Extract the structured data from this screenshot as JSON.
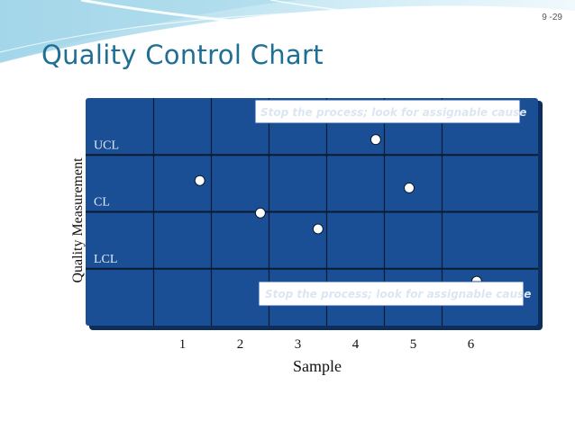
{
  "slide": {
    "page_number": "9 -29",
    "title": "Quality Control Chart"
  },
  "colors": {
    "title": "#1f6f95",
    "plot_bg": "#1a4f96",
    "plot_shadow": "#0d2e5c",
    "grid": "#0a1a30",
    "callout_border": "#1e50a0",
    "callout_text": "#dce6f2",
    "point": "#ffffff",
    "label_text": "#e6ecf5",
    "axis_text": "#111111"
  },
  "chart_data": {
    "type": "scatter",
    "xlabel": "Sample",
    "ylabel": "Quality Measurement",
    "categories": [
      1,
      2,
      3,
      4,
      5,
      6
    ],
    "xlim": [
      -0.5,
      6.5
    ],
    "control_limits": [
      {
        "label": "UCL",
        "band": 3
      },
      {
        "label": "CL",
        "band": 2
      },
      {
        "label": "LCL",
        "band": 1
      }
    ],
    "ylim": [
      0,
      4
    ],
    "points": [
      {
        "x": 0.3,
        "y": 2.55
      },
      {
        "x": 1.35,
        "y": 1.98
      },
      {
        "x": 2.35,
        "y": 1.7
      },
      {
        "x": 3.35,
        "y": 3.27
      },
      {
        "x": 3.93,
        "y": 2.42
      },
      {
        "x": 5.1,
        "y": 0.78
      }
    ],
    "annotations": [
      {
        "text": "Stop the process; look for assignable cause",
        "position": "top"
      },
      {
        "text": "Stop the process; look for assignable cause",
        "position": "bottom"
      }
    ]
  }
}
